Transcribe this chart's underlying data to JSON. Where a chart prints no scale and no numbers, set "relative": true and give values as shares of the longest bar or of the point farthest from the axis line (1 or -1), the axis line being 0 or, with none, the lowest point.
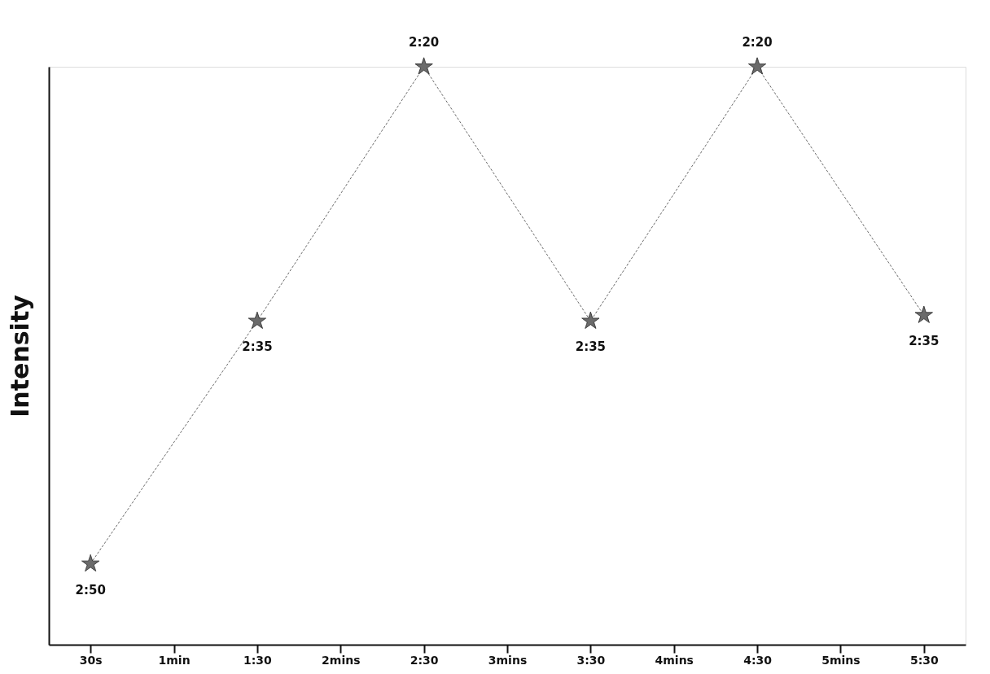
{
  "chart_data": {
    "type": "line",
    "ylabel": "Intensity",
    "relative": true,
    "marker": "star",
    "line_style": "dashed",
    "grid": false,
    "categories": [
      "30s",
      "1min",
      "1:30",
      "2mins",
      "2:30",
      "3mins",
      "3:30",
      "4mins",
      "4:30",
      "5mins",
      "5:30"
    ],
    "series": [
      {
        "color": "#6b6b6b",
        "values": [
          0.14,
          null,
          0.56,
          null,
          1,
          null,
          0.56,
          null,
          1,
          null,
          0.57
        ]
      }
    ],
    "annotations": [
      {
        "text": "2:50",
        "x": "30s",
        "y": 0.14
      },
      {
        "text": "2:35",
        "x": "1:30",
        "y": 0.56
      },
      {
        "text": "2:20",
        "x": "2:30",
        "y": 1
      },
      {
        "text": "2:35",
        "x": "3:30",
        "y": 0.56
      },
      {
        "text": "2:20",
        "x": "4:30",
        "y": 1
      },
      {
        "text": "2:35",
        "x": "5:30",
        "y": 0.57
      }
    ]
  }
}
